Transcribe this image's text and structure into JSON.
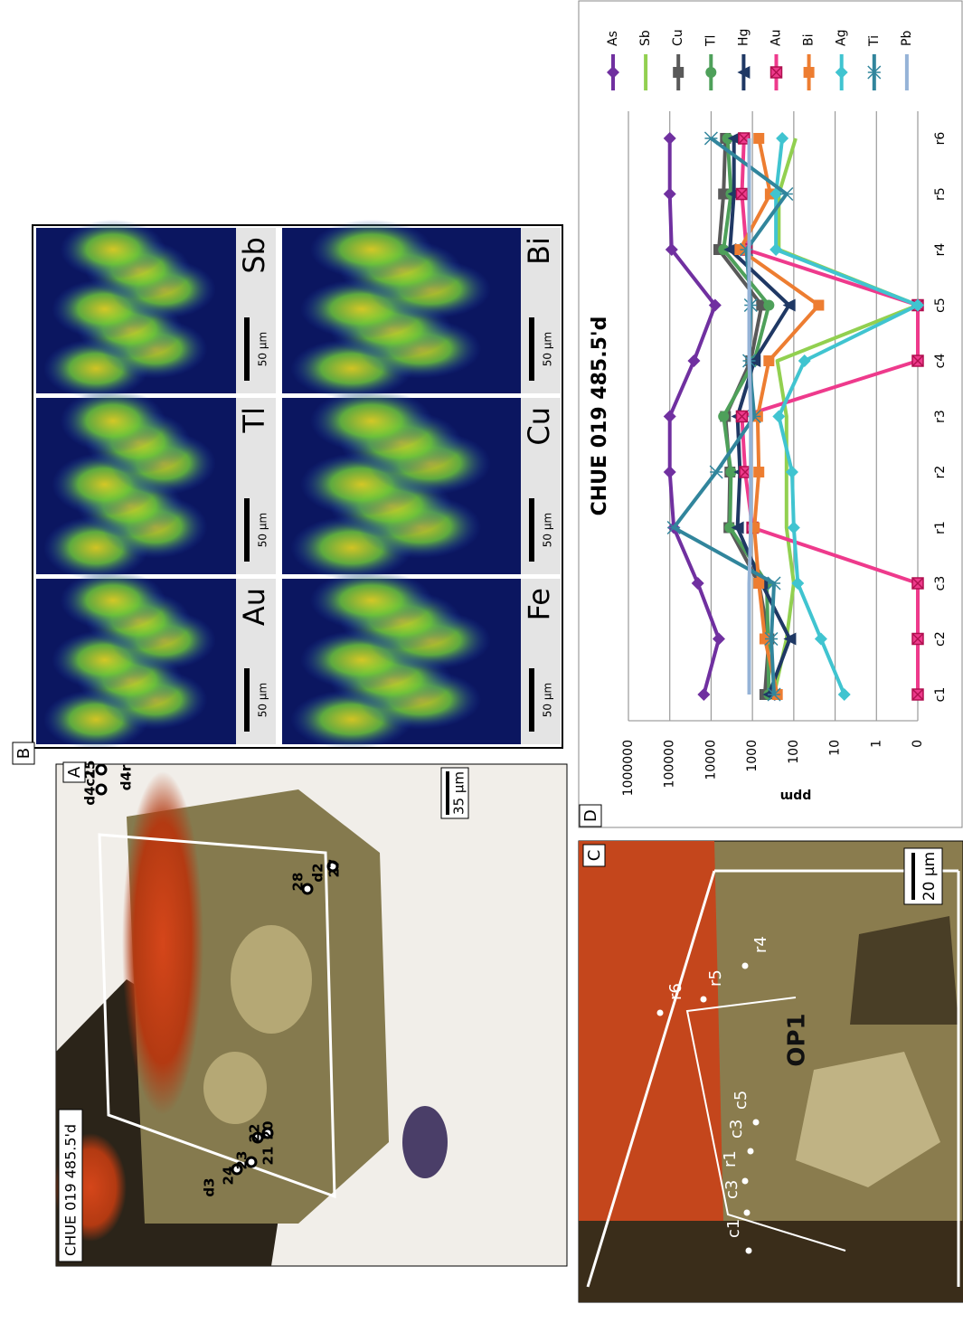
{
  "panel_labels": [
    "A",
    "B",
    "C",
    "D"
  ],
  "panel_a": {
    "sample": "CHUE 019 485.5'd",
    "scale": "35 µm",
    "points": [
      "d3",
      "24",
      "23",
      "22",
      "21",
      "20",
      "28",
      "d2",
      "27",
      "d4",
      "c1",
      "25",
      "d4r"
    ]
  },
  "panel_b": {
    "maps": [
      {
        "element": "Au",
        "scale": "50 µm"
      },
      {
        "element": "Tl",
        "scale": "50 µm"
      },
      {
        "element": "Sb",
        "scale": "50 µm"
      },
      {
        "element": "Fe",
        "scale": "50 µm"
      },
      {
        "element": "Cu",
        "scale": "50 µm"
      },
      {
        "element": "Bi",
        "scale": "50 µm"
      }
    ]
  },
  "panel_c": {
    "scale": "20 µm",
    "zone": "OP1",
    "points": [
      "c1",
      "c3",
      "r1",
      "c3",
      "c5",
      "r4",
      "r5",
      "r6"
    ]
  },
  "chart_data": {
    "type": "line",
    "title": "CHUE 019 485.5'd",
    "y_label": "ppm",
    "categories": [
      "c1",
      "c2",
      "c3",
      "r1",
      "r2",
      "r3",
      "c4",
      "c5",
      "r4",
      "r5",
      "r6"
    ],
    "log_scale": true,
    "grid": true,
    "legend": "right",
    "ylim": [
      0.1,
      1000000
    ],
    "yticks": [
      {
        "value": 0.1,
        "label": "0"
      },
      1,
      10,
      100,
      1000,
      10000,
      100000,
      1000000
    ],
    "series": [
      {
        "name": "As",
        "color": "#7030a0",
        "marker": "diamond",
        "values": [
          15000,
          6500,
          21000,
          80000,
          100000,
          100000,
          26000,
          8000,
          90000,
          100000,
          100000
        ]
      },
      {
        "name": "Sb",
        "color": "#92d050",
        "marker": "none",
        "values": [
          300,
          150,
          100,
          150,
          150,
          150,
          250,
          0.1,
          230,
          230,
          90
        ]
      },
      {
        "name": "Cu",
        "color": "#595959",
        "marker": "square",
        "values": [
          500,
          400,
          700,
          3700,
          3500,
          4500,
          1100,
          600,
          6500,
          5000,
          4500
        ]
      },
      {
        "name": "Tl",
        "color": "#4ea05a",
        "marker": "circle",
        "values": [
          400,
          420,
          450,
          3500,
          3300,
          5000,
          900,
          400,
          5000,
          3300,
          4000
        ]
      },
      {
        "name": "Hg",
        "color": "#1f3864",
        "marker": "triangle",
        "values": [
          400,
          125,
          600,
          2300,
          2000,
          2300,
          900,
          130,
          3500,
          2800,
          2800
        ]
      },
      {
        "name": "Au",
        "color": "#ee3a8c",
        "marker": "x-square",
        "values": [
          0.1,
          0.1,
          0.1,
          1000,
          1500,
          1800,
          0.1,
          0.1,
          1400,
          1800,
          1600
        ]
      },
      {
        "name": "Bi",
        "color": "#ed7d31",
        "marker": "square",
        "values": [
          250,
          500,
          700,
          900,
          700,
          750,
          400,
          25,
          2000,
          370,
          700
        ]
      },
      {
        "name": "Ag",
        "color": "#40c4d0",
        "marker": "diamond",
        "values": [
          6,
          22,
          80,
          100,
          110,
          230,
          55,
          0.1,
          270,
          270,
          190
        ]
      },
      {
        "name": "Ti",
        "color": "#31859c",
        "marker": "star",
        "values": [
          300,
          350,
          300,
          80000,
          7500,
          900,
          1200,
          1100,
          1400,
          150,
          10000
        ]
      },
      {
        "name": "Pb",
        "color": "#95b3d7",
        "marker": "none",
        "values": [
          1200,
          1200,
          1200,
          1100,
          1100,
          1100,
          1200,
          1200,
          1200,
          1200,
          1200
        ]
      }
    ]
  }
}
